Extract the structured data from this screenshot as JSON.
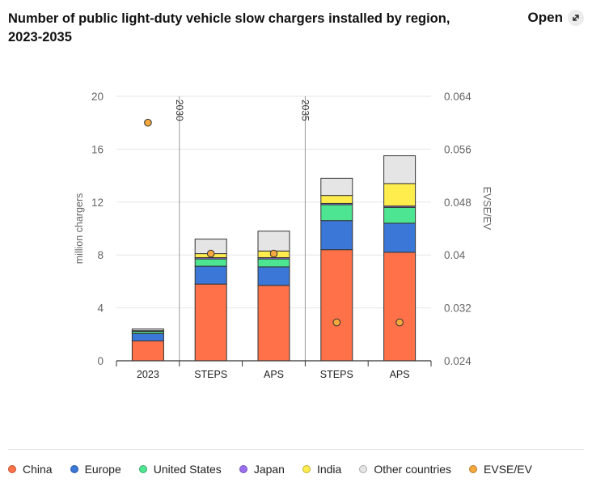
{
  "header": {
    "title": "Number of public light-duty vehicle slow chargers installed by region, 2023-2035",
    "open_label": "Open",
    "open_icon": "expand-icon"
  },
  "chart_data": {
    "type": "bar",
    "stacked": true,
    "title": "Number of public light-duty vehicle slow chargers installed by region, 2023-2035",
    "ylabel": "million chargers",
    "ylabel_right": "EVSE/EV",
    "ylim": [
      0,
      20
    ],
    "yticks": [
      0,
      4,
      8,
      12,
      16,
      20
    ],
    "ytick_labels": [
      "0",
      "4",
      "8",
      "12",
      "16",
      "20"
    ],
    "ylim_right": [
      0.024,
      0.064
    ],
    "yticks_right": [
      0.024,
      0.032,
      0.04,
      0.048,
      0.056,
      0.064
    ],
    "ytick_labels_right": [
      "0.024",
      "0.032",
      "0.04",
      "0.048",
      "0.056",
      "0.064"
    ],
    "categories": [
      "2023",
      "STEPS",
      "APS",
      "STEPS",
      "APS"
    ],
    "group_labels": [
      {
        "label": "2030",
        "before_index": 1
      },
      {
        "label": "2035",
        "before_index": 3
      }
    ],
    "series": [
      {
        "name": "China",
        "color": "#ff7148",
        "values": [
          1.5,
          5.8,
          5.7,
          8.4,
          8.2
        ]
      },
      {
        "name": "Europe",
        "color": "#3b77d6",
        "values": [
          0.55,
          1.35,
          1.4,
          2.2,
          2.2
        ]
      },
      {
        "name": "United States",
        "color": "#4ee592",
        "values": [
          0.15,
          0.55,
          0.6,
          1.2,
          1.2
        ]
      },
      {
        "name": "Japan",
        "color": "#9b6ff0",
        "values": [
          0.05,
          0.1,
          0.1,
          0.1,
          0.1
        ]
      },
      {
        "name": "India",
        "color": "#ffec4d",
        "values": [
          0.03,
          0.3,
          0.5,
          0.6,
          1.7
        ]
      },
      {
        "name": "Other countries",
        "color": "#e5e5e5",
        "values": [
          0.12,
          1.1,
          1.5,
          1.3,
          2.1
        ]
      }
    ],
    "overlay_series": {
      "name": "EVSE/EV",
      "type": "scatter",
      "axis": "right",
      "color": "#f5a83c",
      "values": [
        0.06,
        0.0402,
        0.0402,
        0.0298,
        0.0298
      ]
    },
    "grid": true,
    "legend_position": "bottom"
  }
}
